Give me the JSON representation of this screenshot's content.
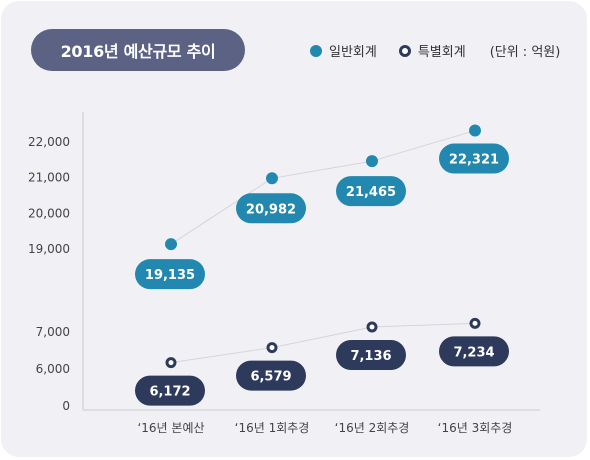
{
  "title": "2016년 예산규모 추이",
  "legend": {
    "general": "일반회계",
    "special": "특별회계",
    "unit": "(단위 : 억원)"
  },
  "colors": {
    "general": "#2288b0",
    "special": "#2e3a5c",
    "title_bg": "#5b6284",
    "card_bg": "#f1f1f5"
  },
  "chart_data": {
    "type": "line",
    "categories": [
      "‘16년 본예산",
      "‘16년 1회추경",
      "‘16년 2회추경",
      "‘16년 3회추경"
    ],
    "series": [
      {
        "name": "일반회계",
        "values": [
          19135,
          20982,
          21465,
          22321
        ],
        "labels": [
          "19,135",
          "20,982",
          "21,465",
          "22,321"
        ]
      },
      {
        "name": "특별회계",
        "values": [
          6172,
          6579,
          7136,
          7234
        ],
        "labels": [
          "6,172",
          "6,579",
          "7,136",
          "7,234"
        ]
      }
    ],
    "y_ticks_upper": [
      "22,000",
      "21,000",
      "20,000",
      "19,000"
    ],
    "y_ticks_lower": [
      "7,000",
      "6,000",
      "0"
    ],
    "ylim_upper": [
      19000,
      22000
    ],
    "ylim_lower": [
      6000,
      7000
    ],
    "axis_break": true,
    "grid": false
  }
}
